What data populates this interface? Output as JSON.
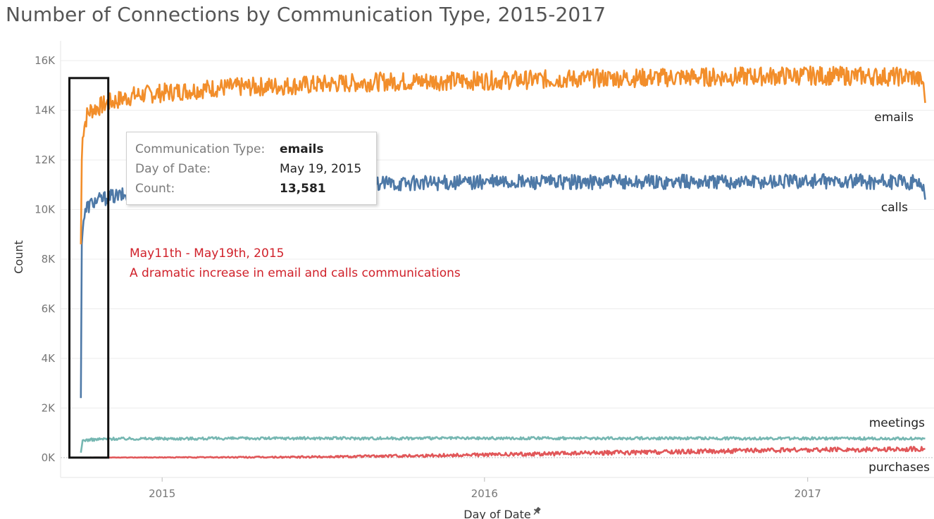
{
  "chart_data": {
    "type": "line",
    "title": "Number of Connections by Communication Type, 2015-2017",
    "xlabel": "Day of Date",
    "ylabel": "Count",
    "x_range": [
      "2014-09-08",
      "2017-05-24"
    ],
    "ylim": [
      -800,
      16800
    ],
    "y_ticks": [
      0,
      2000,
      4000,
      6000,
      8000,
      10000,
      12000,
      14000,
      16000
    ],
    "y_tick_labels": [
      "0K",
      "2K",
      "4K",
      "6K",
      "8K",
      "10K",
      "12K",
      "14K",
      "16K"
    ],
    "x_ticks": [
      "2015-01-01",
      "2016-01-01",
      "2017-01-01"
    ],
    "x_tick_labels": [
      "2015",
      "2016",
      "2017"
    ],
    "grid": true,
    "series": [
      {
        "name": "emails",
        "color": "#f28e2b",
        "points": [
          [
            "2014-10-01",
            8600
          ],
          [
            "2014-10-02",
            12000
          ],
          [
            "2014-10-03",
            12900
          ],
          [
            "2014-10-05",
            13400
          ],
          [
            "2014-10-08",
            13800
          ],
          [
            "2014-10-12",
            14000
          ],
          [
            "2014-11-01",
            14300
          ],
          [
            "2014-12-01",
            14600
          ],
          [
            "2015-03-01",
            14900
          ],
          [
            "2015-06-01",
            15000
          ],
          [
            "2015-09-01",
            15150
          ],
          [
            "2016-01-01",
            15200
          ],
          [
            "2016-06-01",
            15300
          ],
          [
            "2016-10-01",
            15350
          ],
          [
            "2017-01-01",
            15400
          ],
          [
            "2017-05-01",
            15350
          ],
          [
            "2017-05-12",
            15100
          ],
          [
            "2017-05-14",
            14300
          ]
        ]
      },
      {
        "name": "calls",
        "color": "#4e79a7",
        "points": [
          [
            "2014-10-01",
            2400
          ],
          [
            "2014-10-02",
            8600
          ],
          [
            "2014-10-04",
            9600
          ],
          [
            "2014-10-08",
            10100
          ],
          [
            "2014-10-15",
            10300
          ],
          [
            "2014-11-01",
            10500
          ],
          [
            "2015-01-01",
            10750
          ],
          [
            "2015-06-01",
            11000
          ],
          [
            "2016-01-01",
            11100
          ],
          [
            "2016-06-01",
            11100
          ],
          [
            "2017-01-01",
            11150
          ],
          [
            "2017-05-01",
            11100
          ],
          [
            "2017-05-12",
            11000
          ],
          [
            "2017-05-14",
            10400
          ]
        ]
      },
      {
        "name": "meetings",
        "color": "#76b7b2",
        "points": [
          [
            "2014-10-01",
            200
          ],
          [
            "2014-10-03",
            700
          ],
          [
            "2014-11-01",
            760
          ],
          [
            "2015-06-01",
            780
          ],
          [
            "2016-06-01",
            780
          ],
          [
            "2017-05-14",
            770
          ]
        ]
      },
      {
        "name": "purchases",
        "color": "#e15759",
        "points": [
          [
            "2014-10-01",
            0
          ],
          [
            "2015-06-01",
            20
          ],
          [
            "2015-12-01",
            100
          ],
          [
            "2016-06-01",
            200
          ],
          [
            "2016-12-01",
            300
          ],
          [
            "2017-05-14",
            350
          ]
        ]
      }
    ],
    "series_labels": [
      "emails",
      "calls",
      "meetings",
      "purchases"
    ],
    "annotation": {
      "line1": "May11th - May19th, 2015",
      "line2": "A dramatic increase in email and calls communications",
      "highlight_x": [
        "2014-09-18",
        "2014-11-01"
      ],
      "highlight_y": [
        0,
        15300
      ]
    },
    "tooltip": {
      "key_type": "Communication Type:",
      "val_type": "emails",
      "key_date": "Day of Date:",
      "val_date": "May 19, 2015",
      "key_count": "Count:",
      "val_count": "13,581"
    }
  }
}
